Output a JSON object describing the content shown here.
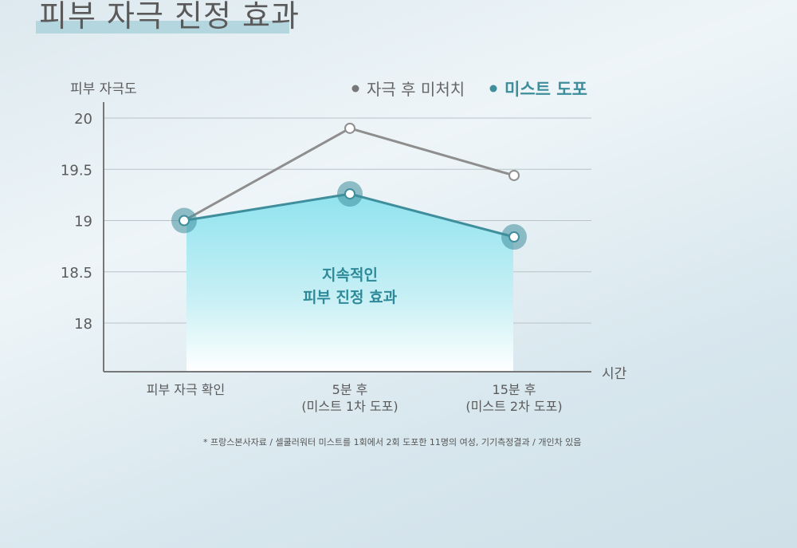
{
  "title": "피부 자극 진정 효과",
  "chart_data": {
    "type": "line",
    "ylabel": "피부 자극도",
    "xlabel": "시간",
    "yticks": [
      "20",
      "19.5",
      "19",
      "18.5",
      "18"
    ],
    "ylim": [
      17.5,
      20.1
    ],
    "categories": [
      {
        "line1": "피부 자극 확인",
        "line2": ""
      },
      {
        "line1": "5분 후",
        "line2": "(미스트 1차 도포)"
      },
      {
        "line1": "15분 후",
        "line2": "(미스트 2차 도포)"
      }
    ],
    "series": [
      {
        "name": "자극 후 미처치",
        "color": "#8e8e8e",
        "values": [
          19.0,
          19.9,
          19.44
        ]
      },
      {
        "name": "미스트 도포",
        "color": "#3f8e9c",
        "values": [
          19.0,
          19.26,
          18.84
        ]
      }
    ],
    "annotation": {
      "line1": "지속적인",
      "line2": "피부 진정 효과"
    },
    "grid": true,
    "legend": "top-right"
  },
  "footnote": "* 프랑스본사자료 / 셀쿨러워터 미스트를 1회에서 2회 도포한 11명의 여성, 기기측정결과 / 개인차 있음"
}
